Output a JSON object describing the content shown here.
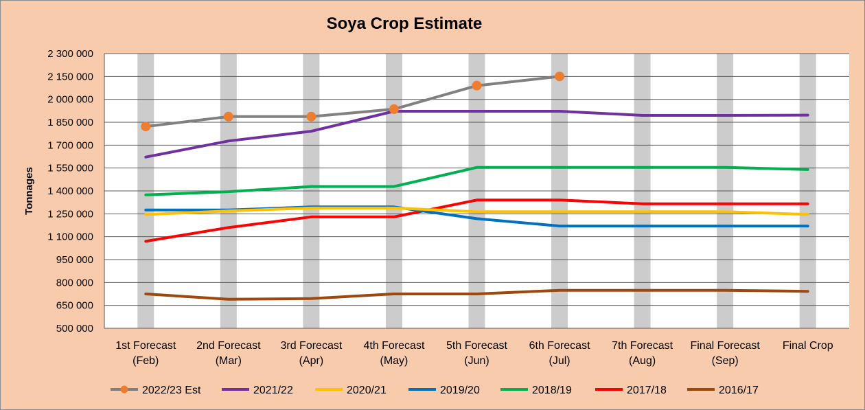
{
  "chart_data": {
    "type": "line",
    "title": "Soya Crop Estimate",
    "ylabel": "Tonnages",
    "xlabel": "",
    "ylim": [
      500000,
      2300000
    ],
    "yticks": [
      {
        "value": 500000,
        "label": "500 000"
      },
      {
        "value": 650000,
        "label": "650 000"
      },
      {
        "value": 800000,
        "label": "800 000"
      },
      {
        "value": 950000,
        "label": "950 000"
      },
      {
        "value": 1100000,
        "label": "1 100 000"
      },
      {
        "value": 1250000,
        "label": "1 250 000"
      },
      {
        "value": 1400000,
        "label": "1 400 000"
      },
      {
        "value": 1550000,
        "label": "1 550 000"
      },
      {
        "value": 1700000,
        "label": "1 700 000"
      },
      {
        "value": 1850000,
        "label": "1 850 000"
      },
      {
        "value": 2000000,
        "label": "2 000 000"
      },
      {
        "value": 2150000,
        "label": "2 150 000"
      },
      {
        "value": 2300000,
        "label": "2 300 000"
      }
    ],
    "categories": [
      [
        "1st Forecast",
        "(Feb)"
      ],
      [
        "2nd Forecast",
        "(Mar)"
      ],
      [
        "3rd Forecast",
        "(Apr)"
      ],
      [
        "4th Forecast",
        "(May)"
      ],
      [
        "5th Forecast",
        "(Jun)"
      ],
      [
        "6th Forecast",
        "(Jul)"
      ],
      [
        "7th Forecast",
        "(Aug)"
      ],
      [
        "Final Forecast",
        "(Sep)"
      ],
      [
        "Final Crop",
        ""
      ]
    ],
    "grid": "horizontal",
    "column_bands_color": "#cccccc",
    "legend_position": "bottom",
    "series": [
      {
        "name": "2022/23 Est",
        "color": "#808080",
        "marker": true,
        "marker_color": "#ed7d31",
        "values": [
          1822000,
          1887000,
          1887000,
          1936000,
          2090000,
          2150000,
          null,
          null,
          null
        ]
      },
      {
        "name": "2021/22",
        "color": "#7030a0",
        "values": [
          1622000,
          1727000,
          1791000,
          1922000,
          1922000,
          1922000,
          1895000,
          1895000,
          1897000
        ]
      },
      {
        "name": "2020/21",
        "color": "#ffc000",
        "values": [
          1245000,
          1269000,
          1288000,
          1288000,
          1264000,
          1264000,
          1264000,
          1264000,
          1246000
        ]
      },
      {
        "name": "2019/20",
        "color": "#0070c0",
        "values": [
          1275000,
          1275000,
          1295000,
          1295000,
          1218000,
          1170000,
          1170000,
          1170000,
          1170000
        ]
      },
      {
        "name": "2018/19",
        "color": "#00b050",
        "values": [
          1374000,
          1395000,
          1429000,
          1429000,
          1554000,
          1554000,
          1554000,
          1554000,
          1540000
        ]
      },
      {
        "name": "2017/18",
        "color": "#ff0000",
        "values": [
          1070000,
          1160000,
          1230000,
          1230000,
          1340000,
          1340000,
          1316000,
          1316000,
          1316000
        ]
      },
      {
        "name": "2016/17",
        "color": "#9e480e",
        "values": [
          725000,
          690000,
          695000,
          725000,
          725000,
          749000,
          749000,
          749000,
          742000
        ]
      }
    ]
  }
}
